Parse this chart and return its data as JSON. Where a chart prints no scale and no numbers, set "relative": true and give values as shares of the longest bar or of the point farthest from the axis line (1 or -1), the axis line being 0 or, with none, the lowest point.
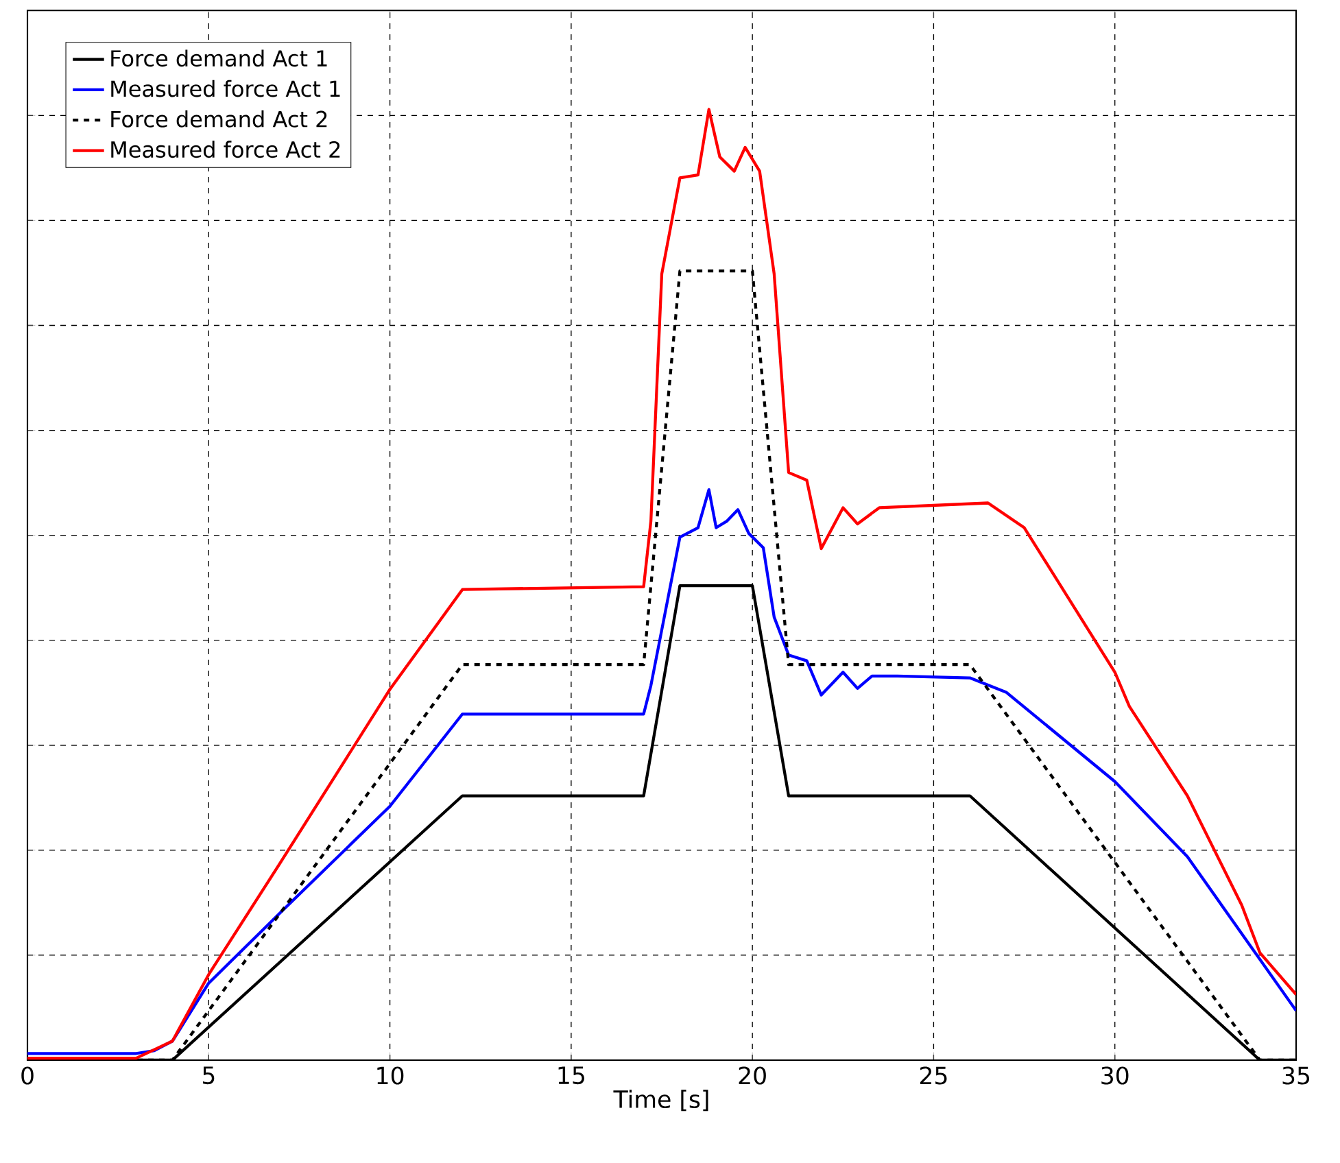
{
  "chart_data": {
    "type": "line",
    "xlabel": "Time [s]",
    "xlim": [
      0,
      35
    ],
    "xticks": [
      0,
      5,
      10,
      15,
      20,
      25,
      30,
      35
    ],
    "relative": true,
    "grid": true,
    "legend": "top left",
    "tick_labels": "x",
    "series": [
      {
        "name": "Force demand Act 1",
        "color": "#000000",
        "line_style": "solid",
        "x": [
          0,
          4,
          12,
          17,
          18,
          20,
          21,
          26,
          34,
          35
        ],
        "values": [
          0,
          0,
          0.278,
          0.278,
          0.499,
          0.499,
          0.278,
          0.278,
          0,
          0
        ]
      },
      {
        "name": "Measured force Act 1",
        "color": "#0000ff",
        "line_style": "solid",
        "x": [
          0,
          3,
          3.5,
          4,
          5,
          7,
          10,
          12,
          17,
          17.2,
          18,
          18.5,
          18.8,
          19,
          19.3,
          19.6,
          19.9,
          20.3,
          20.6,
          21,
          21.5,
          21.9,
          22.5,
          22.9,
          23.3,
          24,
          26,
          27,
          30,
          32,
          35
        ],
        "values": [
          0.007,
          0.007,
          0.01,
          0.02,
          0.081,
          0.156,
          0.267,
          0.364,
          0.364,
          0.394,
          0.55,
          0.56,
          0.6,
          0.56,
          0.567,
          0.579,
          0.554,
          0.539,
          0.466,
          0.426,
          0.42,
          0.384,
          0.408,
          0.391,
          0.404,
          0.404,
          0.402,
          0.387,
          0.293,
          0.214,
          0.052
        ]
      },
      {
        "name": "Force demand Act 2",
        "color": "#000000",
        "line_style": "dashed",
        "x": [
          0,
          4,
          12,
          17,
          18,
          20,
          21,
          26,
          34,
          35
        ],
        "values": [
          0,
          0,
          0.416,
          0.416,
          0.83,
          0.83,
          0.416,
          0.416,
          0,
          0
        ]
      },
      {
        "name": "Measured force Act 2",
        "color": "#ff0000",
        "line_style": "solid",
        "x": [
          0,
          3,
          4,
          5,
          7,
          10,
          12,
          17,
          17.2,
          17.5,
          18,
          18.5,
          18.8,
          19.1,
          19.5,
          19.8,
          20.2,
          20.6,
          21,
          21.5,
          21.9,
          22.5,
          22.9,
          23.5,
          26.5,
          27.5,
          30,
          30.4,
          32,
          33.5,
          34,
          35
        ],
        "values": [
          0.002,
          0.002,
          0.02,
          0.09,
          0.209,
          0.39,
          0.495,
          0.498,
          0.567,
          0.827,
          0.928,
          0.931,
          1,
          0.95,
          0.935,
          0.96,
          0.935,
          0.827,
          0.618,
          0.61,
          0.538,
          0.581,
          0.564,
          0.581,
          0.586,
          0.56,
          0.408,
          0.372,
          0.278,
          0.163,
          0.113,
          0.069
        ]
      }
    ]
  }
}
